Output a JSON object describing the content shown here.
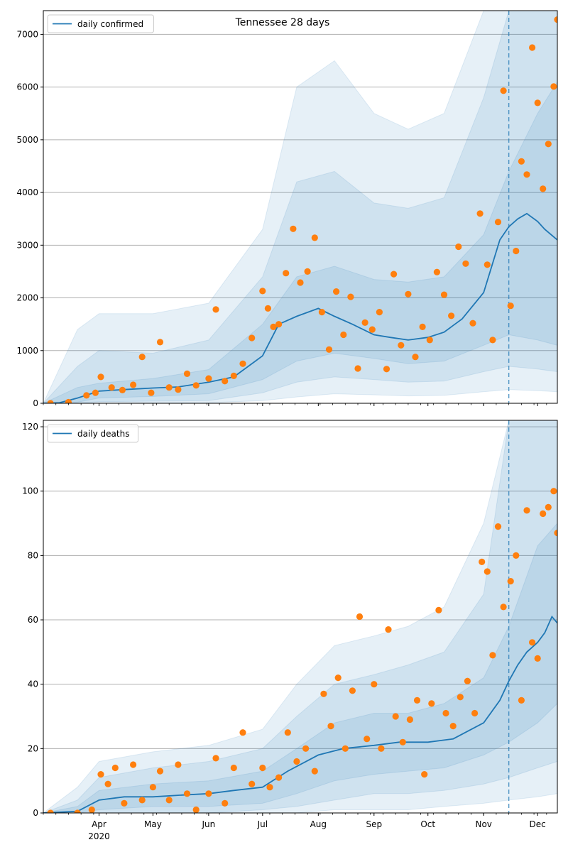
{
  "figure": {
    "title": "Tennessee 28 days"
  },
  "colors": {
    "line": "#1f77b4",
    "points": "#ff7f0e",
    "band": "#1f77b4",
    "grid": "#b0b0b0"
  },
  "chart_data": [
    {
      "type": "line",
      "title": "Tennessee 28 days",
      "x_axis": {
        "type": "date",
        "range": [
          "2020-03-01",
          "2020-12-12"
        ],
        "month_ticks": [
          {
            "date": "2020-04-01",
            "label": "Apr",
            "sublabel": "2020"
          },
          {
            "date": "2020-05-01",
            "label": "May",
            "sublabel": ""
          },
          {
            "date": "2020-06-01",
            "label": "Jun",
            "sublabel": ""
          },
          {
            "date": "2020-07-01",
            "label": "Jul",
            "sublabel": ""
          },
          {
            "date": "2020-08-01",
            "label": "Aug",
            "sublabel": ""
          },
          {
            "date": "2020-09-01",
            "label": "Sep",
            "sublabel": ""
          },
          {
            "date": "2020-10-01",
            "label": "Oct",
            "sublabel": ""
          },
          {
            "date": "2020-11-01",
            "label": "Nov",
            "sublabel": ""
          },
          {
            "date": "2020-12-01",
            "label": "Dec",
            "sublabel": ""
          }
        ]
      },
      "ylim": [
        0,
        7450
      ],
      "yticks": [
        "0",
        "1000",
        "2000",
        "3000",
        "4000",
        "5000",
        "6000",
        "7000"
      ],
      "grid": "horizontal",
      "legend": {
        "position": "top-left",
        "entries": [
          "daily confirmed"
        ]
      },
      "forecast_start": "2020-11-15",
      "series": [
        {
          "name": "daily confirmed",
          "kind": "line",
          "x": [
            "2020-03-01",
            "2020-03-10",
            "2020-03-20",
            "2020-04-01",
            "2020-04-15",
            "2020-05-01",
            "2020-05-15",
            "2020-06-01",
            "2020-06-15",
            "2020-07-01",
            "2020-07-10",
            "2020-07-20",
            "2020-08-01",
            "2020-08-10",
            "2020-08-20",
            "2020-09-01",
            "2020-09-10",
            "2020-09-20",
            "2020-10-01",
            "2020-10-10",
            "2020-10-20",
            "2020-11-01",
            "2020-11-10",
            "2020-11-15",
            "2020-11-20",
            "2020-11-25",
            "2020-12-01",
            "2020-12-05",
            "2020-12-12"
          ],
          "y": [
            0,
            10,
            100,
            230,
            260,
            290,
            310,
            400,
            500,
            900,
            1500,
            1650,
            1800,
            1650,
            1500,
            1300,
            1250,
            1200,
            1250,
            1350,
            1600,
            2100,
            3100,
            3350,
            3500,
            3600,
            3450,
            3300,
            3100
          ]
        },
        {
          "name": "",
          "kind": "band",
          "x": [
            "2020-03-01",
            "2020-03-20",
            "2020-04-01",
            "2020-05-01",
            "2020-06-01",
            "2020-07-01",
            "2020-07-20",
            "2020-08-10",
            "2020-09-01",
            "2020-09-20",
            "2020-10-10",
            "2020-11-01",
            "2020-11-15",
            "2020-12-01",
            "2020-12-12"
          ],
          "low": [
            0,
            20,
            100,
            130,
            180,
            450,
            800,
            950,
            850,
            750,
            800,
            1100,
            1300,
            1200,
            1100
          ],
          "high": [
            0,
            300,
            380,
            470,
            640,
            1500,
            2400,
            2600,
            2350,
            2300,
            2400,
            3200,
            4400,
            5500,
            6100
          ]
        },
        {
          "name": "",
          "kind": "band",
          "x": [
            "2020-03-01",
            "2020-03-20",
            "2020-04-01",
            "2020-05-01",
            "2020-06-01",
            "2020-07-01",
            "2020-07-20",
            "2020-08-10",
            "2020-09-01",
            "2020-09-20",
            "2020-10-10",
            "2020-11-01",
            "2020-11-15",
            "2020-12-01",
            "2020-12-12"
          ],
          "low": [
            0,
            0,
            30,
            40,
            50,
            200,
            400,
            500,
            450,
            400,
            420,
            600,
            700,
            650,
            600
          ],
          "high": [
            0,
            700,
            1000,
            950,
            1200,
            2400,
            4200,
            4400,
            3800,
            3700,
            3900,
            5800,
            7450,
            7450,
            7450
          ]
        },
        {
          "name": "",
          "kind": "band",
          "x": [
            "2020-03-01",
            "2020-03-20",
            "2020-04-01",
            "2020-05-01",
            "2020-06-01",
            "2020-07-01",
            "2020-07-20",
            "2020-08-10",
            "2020-09-01",
            "2020-09-20",
            "2020-10-10",
            "2020-11-01",
            "2020-11-15",
            "2020-12-01",
            "2020-12-12"
          ],
          "low": [
            0,
            0,
            0,
            10,
            10,
            50,
            120,
            180,
            160,
            140,
            150,
            220,
            260,
            240,
            220
          ],
          "high": [
            0,
            1400,
            1700,
            1700,
            1900,
            3300,
            6000,
            6500,
            5500,
            5200,
            5500,
            7450,
            7450,
            7450,
            7450
          ]
        },
        {
          "name": "",
          "kind": "scatter",
          "x": [
            "2020-03-05",
            "2020-03-15",
            "2020-03-25",
            "2020-03-30",
            "2020-04-02",
            "2020-04-08",
            "2020-04-14",
            "2020-04-20",
            "2020-04-25",
            "2020-04-30",
            "2020-05-05",
            "2020-05-10",
            "2020-05-15",
            "2020-05-20",
            "2020-05-25",
            "2020-06-01",
            "2020-06-05",
            "2020-06-10",
            "2020-06-15",
            "2020-06-20",
            "2020-06-25",
            "2020-07-01",
            "2020-07-04",
            "2020-07-07",
            "2020-07-10",
            "2020-07-14",
            "2020-07-18",
            "2020-07-22",
            "2020-07-26",
            "2020-07-30",
            "2020-08-03",
            "2020-08-07",
            "2020-08-11",
            "2020-08-15",
            "2020-08-19",
            "2020-08-23",
            "2020-08-27",
            "2020-08-31",
            "2020-09-04",
            "2020-09-08",
            "2020-09-12",
            "2020-09-16",
            "2020-09-20",
            "2020-09-24",
            "2020-09-28",
            "2020-10-02",
            "2020-10-06",
            "2020-10-10",
            "2020-10-14",
            "2020-10-18",
            "2020-10-22",
            "2020-10-26",
            "2020-10-30",
            "2020-11-03",
            "2020-11-06",
            "2020-11-09",
            "2020-11-12",
            "2020-11-16",
            "2020-11-19",
            "2020-11-22",
            "2020-11-25",
            "2020-11-28",
            "2020-12-01",
            "2020-12-04",
            "2020-12-07",
            "2020-12-10",
            "2020-12-12"
          ],
          "y": [
            0,
            20,
            150,
            200,
            500,
            300,
            250,
            350,
            880,
            200,
            1160,
            300,
            260,
            560,
            340,
            470,
            1780,
            420,
            520,
            750,
            1240,
            2130,
            1800,
            1450,
            1500,
            2470,
            3310,
            2290,
            2500,
            3140,
            1730,
            1020,
            2120,
            1300,
            2020,
            660,
            1530,
            1400,
            1730,
            650,
            2450,
            1100,
            2070,
            880,
            1450,
            1200,
            2490,
            2060,
            1660,
            2970,
            2650,
            1520,
            3600,
            2630,
            1200,
            3440,
            5930,
            1850,
            2890,
            4590,
            4340,
            6750,
            5700,
            4070,
            4920,
            6010,
            7280
          ]
        }
      ]
    },
    {
      "type": "line",
      "title": "",
      "x_axis": {
        "type": "date",
        "range": [
          "2020-03-01",
          "2020-12-12"
        ]
      },
      "ylim": [
        0,
        122
      ],
      "yticks": [
        "0",
        "20",
        "40",
        "60",
        "80",
        "100",
        "120"
      ],
      "grid": "horizontal",
      "legend": {
        "position": "top-left",
        "entries": [
          "daily deaths"
        ]
      },
      "forecast_start": "2020-11-15",
      "series": [
        {
          "name": "daily deaths",
          "kind": "line",
          "x": [
            "2020-03-01",
            "2020-03-20",
            "2020-04-01",
            "2020-04-15",
            "2020-05-01",
            "2020-05-15",
            "2020-06-01",
            "2020-06-15",
            "2020-07-01",
            "2020-07-15",
            "2020-08-01",
            "2020-08-15",
            "2020-09-01",
            "2020-09-15",
            "2020-10-01",
            "2020-10-15",
            "2020-11-01",
            "2020-11-10",
            "2020-11-15",
            "2020-11-20",
            "2020-11-25",
            "2020-12-01",
            "2020-12-05",
            "2020-12-09",
            "2020-12-12"
          ],
          "y": [
            0,
            0.5,
            4,
            5,
            5,
            5.5,
            6,
            7,
            8,
            13,
            18,
            20,
            21,
            22,
            22,
            23,
            28,
            35,
            41,
            46,
            50,
            53,
            56,
            61,
            59
          ]
        },
        {
          "name": "",
          "kind": "band",
          "x": [
            "2020-03-01",
            "2020-03-20",
            "2020-04-01",
            "2020-05-01",
            "2020-06-01",
            "2020-07-01",
            "2020-07-20",
            "2020-08-10",
            "2020-09-01",
            "2020-09-20",
            "2020-10-10",
            "2020-11-01",
            "2020-11-15",
            "2020-12-01",
            "2020-12-12"
          ],
          "low": [
            0,
            0,
            1,
            2,
            2,
            3,
            6,
            10,
            12,
            13,
            14,
            18,
            22,
            28,
            34
          ],
          "high": [
            0,
            2,
            7,
            9,
            10,
            13,
            20,
            28,
            31,
            31,
            34,
            42,
            58,
            83,
            90
          ]
        },
        {
          "name": "",
          "kind": "band",
          "x": [
            "2020-03-01",
            "2020-03-20",
            "2020-04-01",
            "2020-05-01",
            "2020-06-01",
            "2020-07-01",
            "2020-07-20",
            "2020-08-10",
            "2020-09-01",
            "2020-09-20",
            "2020-10-10",
            "2020-11-01",
            "2020-11-15",
            "2020-12-01",
            "2020-12-12"
          ],
          "low": [
            0,
            0,
            0,
            0,
            0,
            1,
            2,
            4,
            6,
            6,
            7,
            9,
            11,
            14,
            16
          ],
          "high": [
            0,
            4,
            11,
            14,
            16,
            20,
            30,
            40,
            43,
            46,
            50,
            68,
            122,
            122,
            122
          ]
        },
        {
          "name": "",
          "kind": "band",
          "x": [
            "2020-03-01",
            "2020-03-20",
            "2020-04-01",
            "2020-05-01",
            "2020-06-01",
            "2020-07-01",
            "2020-07-20",
            "2020-08-10",
            "2020-09-01",
            "2020-09-20",
            "2020-10-10",
            "2020-11-01",
            "2020-11-15",
            "2020-12-01",
            "2020-12-12"
          ],
          "low": [
            0,
            0,
            0,
            0,
            0,
            0,
            0,
            1,
            1,
            1,
            2,
            3,
            4,
            5,
            6
          ],
          "high": [
            0,
            8,
            16,
            19,
            21,
            26,
            40,
            52,
            55,
            58,
            64,
            90,
            122,
            122,
            122
          ]
        },
        {
          "name": "",
          "kind": "scatter",
          "x": [
            "2020-03-05",
            "2020-03-20",
            "2020-03-28",
            "2020-04-02",
            "2020-04-06",
            "2020-04-10",
            "2020-04-15",
            "2020-04-20",
            "2020-04-25",
            "2020-05-01",
            "2020-05-05",
            "2020-05-10",
            "2020-05-15",
            "2020-05-20",
            "2020-05-25",
            "2020-06-01",
            "2020-06-05",
            "2020-06-10",
            "2020-06-15",
            "2020-06-20",
            "2020-06-25",
            "2020-07-01",
            "2020-07-05",
            "2020-07-10",
            "2020-07-15",
            "2020-07-20",
            "2020-07-25",
            "2020-07-30",
            "2020-08-04",
            "2020-08-08",
            "2020-08-12",
            "2020-08-16",
            "2020-08-20",
            "2020-08-24",
            "2020-08-28",
            "2020-09-01",
            "2020-09-05",
            "2020-09-09",
            "2020-09-13",
            "2020-09-17",
            "2020-09-21",
            "2020-09-25",
            "2020-09-29",
            "2020-10-03",
            "2020-10-07",
            "2020-10-11",
            "2020-10-15",
            "2020-10-19",
            "2020-10-23",
            "2020-10-27",
            "2020-10-31",
            "2020-11-03",
            "2020-11-06",
            "2020-11-09",
            "2020-11-12",
            "2020-11-16",
            "2020-11-19",
            "2020-11-22",
            "2020-11-25",
            "2020-11-28",
            "2020-12-01",
            "2020-12-04",
            "2020-12-07",
            "2020-12-10",
            "2020-12-12"
          ],
          "y": [
            0,
            0,
            1,
            12,
            9,
            14,
            3,
            15,
            4,
            8,
            13,
            4,
            15,
            6,
            1,
            6,
            17,
            3,
            14,
            25,
            9,
            14,
            8,
            11,
            25,
            16,
            20,
            13,
            37,
            27,
            42,
            20,
            38,
            61,
            23,
            40,
            20,
            57,
            30,
            22,
            29,
            35,
            12,
            34,
            63,
            31,
            27,
            36,
            41,
            31,
            78,
            75,
            49,
            89,
            64,
            72,
            80,
            35,
            94,
            53,
            48,
            93,
            95,
            100,
            87
          ]
        }
      ]
    }
  ]
}
